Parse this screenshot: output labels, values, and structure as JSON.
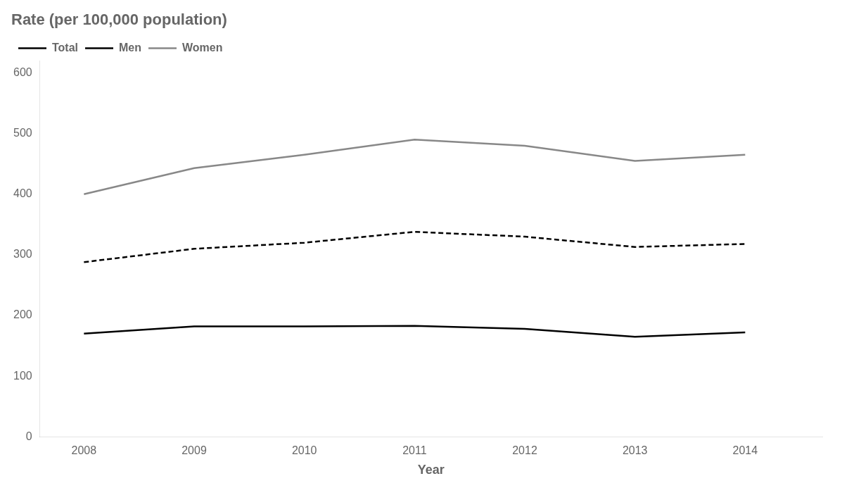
{
  "chart_data": {
    "type": "line",
    "title": "Rate (per 100,000 population)",
    "x_label": "Year",
    "x": [
      2008,
      2009,
      2010,
      2011,
      2012,
      2013,
      2014
    ],
    "series": [
      {
        "name": "Total",
        "color": "#000000",
        "line_style": "dashed",
        "values": [
          288,
          310,
          320,
          338,
          330,
          313,
          318
        ]
      },
      {
        "name": "Men",
        "color": "#000000",
        "line_style": "solid",
        "values": [
          170,
          182,
          182,
          183,
          178,
          165,
          172
        ]
      },
      {
        "name": "Women",
        "color": "#888888",
        "line_style": "solid",
        "values": [
          400,
          443,
          465,
          490,
          480,
          455,
          465
        ]
      }
    ],
    "xlim": [
      2007.6,
      2014.7
    ],
    "xticks": [
      2008,
      2009,
      2010,
      2011,
      2012,
      2013,
      2014
    ],
    "ylim": [
      0,
      620
    ],
    "yticks": [
      0,
      100,
      200,
      300,
      400,
      500,
      600
    ],
    "grid": false,
    "legend": "upper left"
  }
}
